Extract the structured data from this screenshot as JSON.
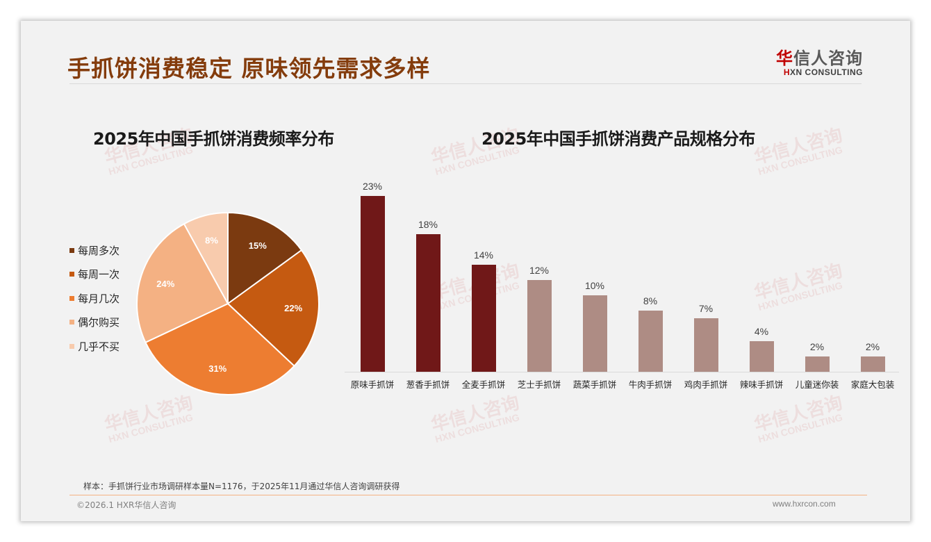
{
  "header": {
    "title": "手抓饼消费稳定 原味领先需求多样",
    "logo": {
      "cn_accent": "华",
      "cn_rest": "信人咨询",
      "en_accent": "H",
      "en_rest": "XN CONSULTING"
    }
  },
  "watermark": {
    "cn": "华信人咨询",
    "en": "HXN CONSULTING"
  },
  "colors": {
    "background": "#f2f2f2",
    "title": "#843c0c",
    "bar_highlight": "#701818",
    "bar_normal": "#ae8c84",
    "footer_rule": "#f4b183"
  },
  "chart_data": [
    {
      "type": "pie",
      "title": "2025年中国手抓饼消费频率分布",
      "categories": [
        "每周多次",
        "每周一次",
        "每月几次",
        "偶尔购买",
        "几乎不买"
      ],
      "values": [
        15,
        22,
        31,
        24,
        8
      ],
      "labels": [
        "15%",
        "22%",
        "31%",
        "24%",
        "8%"
      ],
      "colors": [
        "#7b3a10",
        "#c55a11",
        "#ed7d31",
        "#f4b183",
        "#f8cbad"
      ],
      "start_angle": "12 o'clock",
      "direction": "clockwise",
      "legend_position": "left"
    },
    {
      "type": "bar",
      "title": "2025年中国手抓饼消费产品规格分布",
      "categories": [
        "原味手抓饼",
        "葱香手抓饼",
        "全麦手抓饼",
        "芝士手抓饼",
        "蔬菜手抓饼",
        "牛肉手抓饼",
        "鸡肉手抓饼",
        "辣味手抓饼",
        "儿童迷你装",
        "家庭大包装"
      ],
      "values": [
        23,
        18,
        14,
        12,
        10,
        8,
        7,
        4,
        2,
        2
      ],
      "labels": [
        "23%",
        "18%",
        "14%",
        "12%",
        "10%",
        "8%",
        "7%",
        "4%",
        "2%",
        "2%"
      ],
      "highlight_top_n": 3,
      "xlabel": "",
      "ylabel": "",
      "ylim": [
        0,
        25
      ],
      "grid": false,
      "legend": false
    }
  ],
  "footer": {
    "sample_note": "样本：手抓饼行业市场调研样本量N=1176，于2025年11月通过华信人咨询调研获得",
    "copyright": "©2026.1 HXR华信人咨询",
    "website": "www.hxrcon.com"
  }
}
